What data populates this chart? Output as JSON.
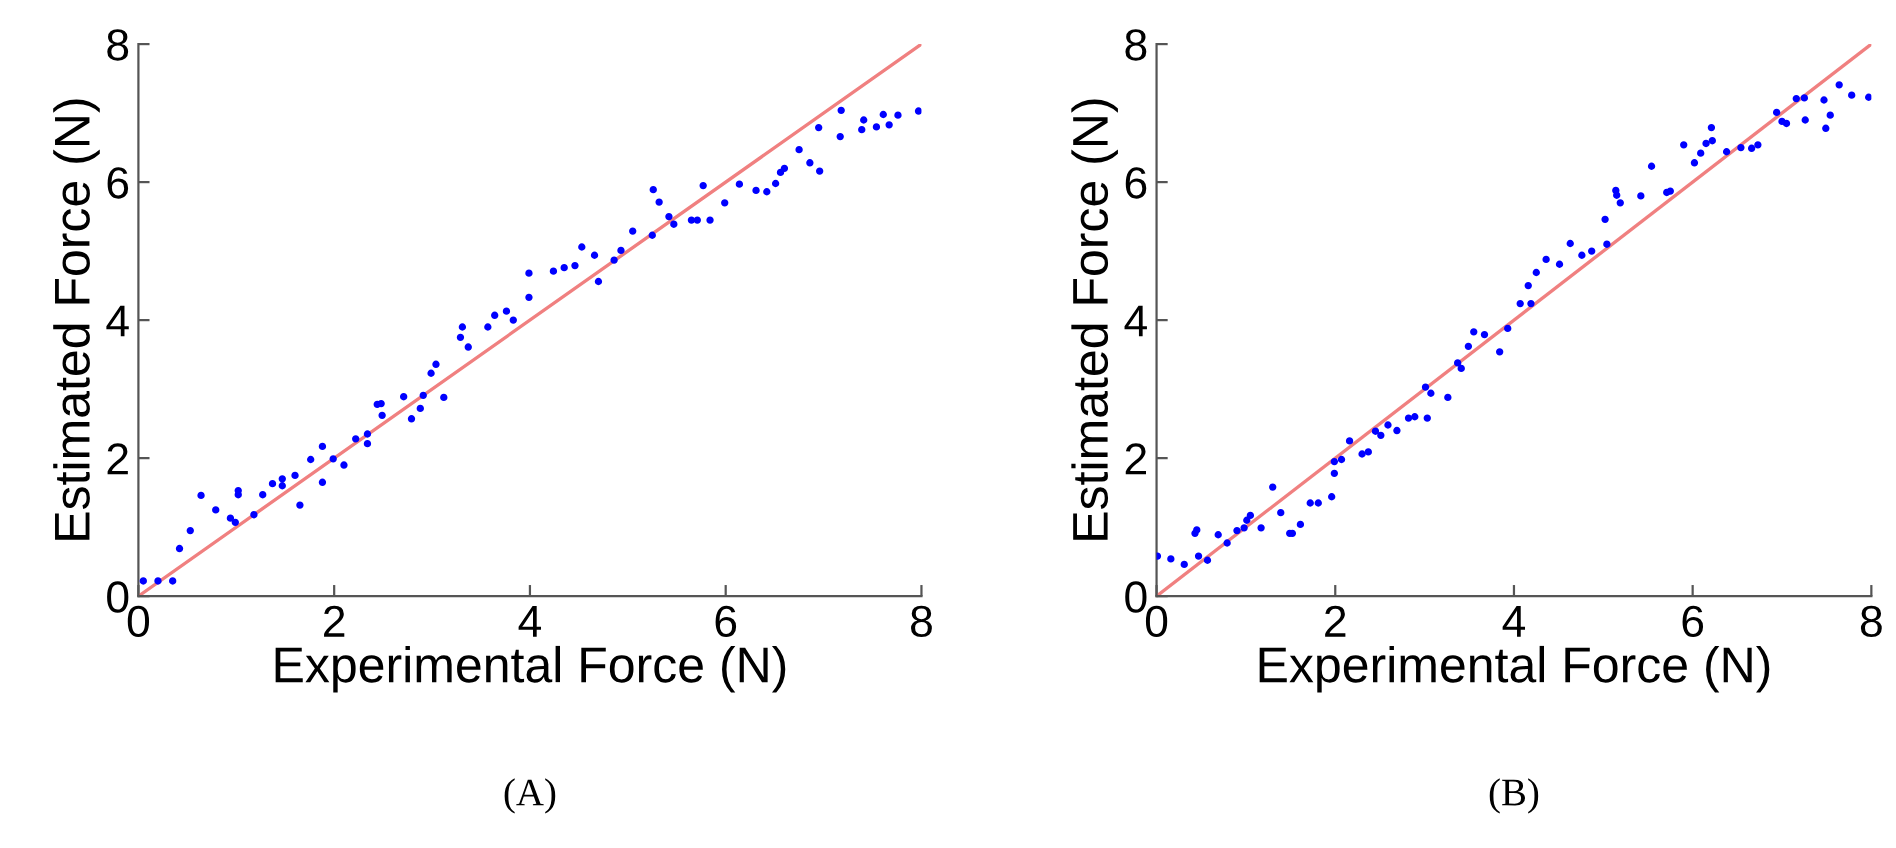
{
  "chart_data": [
    {
      "type": "scatter",
      "xlabel": "Experimental Force (N)",
      "ylabel": "Estimated Force (N)",
      "annotations": [
        "(A)"
      ],
      "xlim": [
        0,
        8
      ],
      "ylim": [
        0,
        8
      ],
      "xticks": [
        0,
        2,
        4,
        6,
        8
      ],
      "yticks": [
        0,
        2,
        4,
        6,
        8
      ],
      "grid": false,
      "marker": "circle",
      "series": [
        {
          "color": "#0000ff",
          "x": [
            0.05,
            0.2,
            0.35,
            0.42,
            0.53,
            0.64,
            0.79,
            0.94,
            0.99,
            1.02,
            1.02,
            1.18,
            1.27,
            1.37,
            1.47,
            1.47,
            1.6,
            1.65,
            1.76,
            1.88,
            1.88,
            1.99,
            2.1,
            2.22,
            2.34,
            2.34,
            2.44,
            2.48,
            2.49,
            2.71,
            2.79,
            2.88,
            2.91,
            2.99,
            3.04,
            3.12,
            3.29,
            3.31,
            3.37,
            3.57,
            3.64,
            3.76,
            3.83,
            3.99,
            3.99,
            4.24,
            4.35,
            4.46,
            4.53,
            4.66,
            4.7,
            4.86,
            4.93,
            5.05,
            5.25,
            5.26,
            5.32,
            5.42,
            5.47,
            5.65,
            5.71,
            5.77,
            5.84,
            5.99,
            6.14,
            6.31,
            6.42,
            6.51,
            6.56,
            6.6,
            6.75,
            6.86,
            6.95,
            6.96,
            7.17,
            7.18,
            7.39,
            7.41,
            7.54,
            7.61,
            7.67,
            7.76,
            7.97
          ],
          "values": [
            0.22,
            0.22,
            0.22,
            0.69,
            0.95,
            1.46,
            1.25,
            1.13,
            1.07,
            1.53,
            1.47,
            1.18,
            1.47,
            1.63,
            1.7,
            1.6,
            1.75,
            1.32,
            1.98,
            2.17,
            1.65,
            1.99,
            1.9,
            2.28,
            2.35,
            2.21,
            2.78,
            2.79,
            2.62,
            2.89,
            2.57,
            2.72,
            2.91,
            3.23,
            3.36,
            2.88,
            3.75,
            3.9,
            3.61,
            3.9,
            4.07,
            4.13,
            4.0,
            4.68,
            4.33,
            4.71,
            4.76,
            4.79,
            5.06,
            4.94,
            4.56,
            4.87,
            5.01,
            5.29,
            5.23,
            5.89,
            5.71,
            5.5,
            5.39,
            5.45,
            5.45,
            5.95,
            5.45,
            5.7,
            5.97,
            5.88,
            5.86,
            5.98,
            6.14,
            6.2,
            6.47,
            6.28,
            6.79,
            6.16,
            6.66,
            7.04,
            6.76,
            6.9,
            6.8,
            6.98,
            6.83,
            6.97,
            7.03
          ]
        },
        {
          "type": "line",
          "color": "#f08080",
          "x": [
            0,
            8
          ],
          "values": [
            0,
            8
          ],
          "marker": "none",
          "line_style": "solid"
        }
      ]
    },
    {
      "type": "scatter",
      "xlabel": "Experimental Force (N)",
      "ylabel": "Estimated Force (N)",
      "annotations": [
        "(B)"
      ],
      "xlim": [
        0,
        8
      ],
      "ylim": [
        0,
        8
      ],
      "xticks": [
        0,
        2,
        4,
        6,
        8
      ],
      "yticks": [
        0,
        2,
        4,
        6,
        8
      ],
      "grid": false,
      "marker": "circle",
      "series": [
        {
          "color": "#0000ff",
          "x": [
            0.01,
            0.16,
            0.31,
            0.43,
            0.45,
            0.47,
            0.57,
            0.69,
            0.79,
            0.9,
            0.98,
            1.01,
            1.05,
            1.17,
            1.3,
            1.39,
            1.49,
            1.52,
            1.61,
            1.72,
            1.81,
            1.96,
            1.99,
            1.99,
            2.07,
            2.16,
            2.3,
            2.37,
            2.45,
            2.51,
            2.59,
            2.69,
            2.82,
            2.89,
            3.01,
            3.03,
            3.07,
            3.26,
            3.37,
            3.41,
            3.49,
            3.55,
            3.67,
            3.84,
            3.93,
            4.07,
            4.16,
            4.19,
            4.25,
            4.36,
            4.51,
            4.63,
            4.76,
            4.87,
            5.02,
            5.04,
            5.14,
            5.15,
            5.19,
            5.42,
            5.54,
            5.71,
            5.75,
            5.9,
            6.02,
            6.09,
            6.15,
            6.21,
            6.22,
            6.38,
            6.54,
            6.66,
            6.73,
            6.94,
            7.0,
            7.05,
            7.16,
            7.25,
            7.26,
            7.47,
            7.49,
            7.54,
            7.64,
            7.78,
            7.97
          ],
          "values": [
            0.58,
            0.54,
            0.46,
            0.91,
            0.96,
            0.58,
            0.52,
            0.89,
            0.77,
            0.95,
            0.99,
            1.1,
            1.17,
            0.99,
            1.58,
            1.21,
            0.91,
            0.91,
            1.04,
            1.35,
            1.35,
            1.44,
            1.78,
            1.95,
            1.98,
            2.25,
            2.06,
            2.09,
            2.39,
            2.33,
            2.48,
            2.4,
            2.58,
            2.6,
            3.03,
            2.58,
            2.94,
            2.88,
            3.38,
            3.3,
            3.62,
            3.83,
            3.79,
            3.54,
            3.88,
            4.24,
            4.5,
            4.24,
            4.69,
            4.88,
            4.81,
            5.11,
            4.94,
            5.0,
            5.46,
            5.1,
            5.88,
            5.81,
            5.7,
            5.8,
            6.23,
            5.85,
            5.87,
            6.54,
            6.28,
            6.42,
            6.56,
            6.79,
            6.6,
            6.44,
            6.5,
            6.49,
            6.54,
            7.01,
            6.88,
            6.85,
            7.21,
            7.22,
            6.9,
            7.19,
            6.78,
            6.97,
            7.41,
            7.26,
            7.23
          ]
        },
        {
          "type": "line",
          "color": "#f08080",
          "x": [
            0,
            8
          ],
          "values": [
            0,
            8
          ],
          "marker": "none",
          "line_style": "solid"
        }
      ]
    }
  ]
}
